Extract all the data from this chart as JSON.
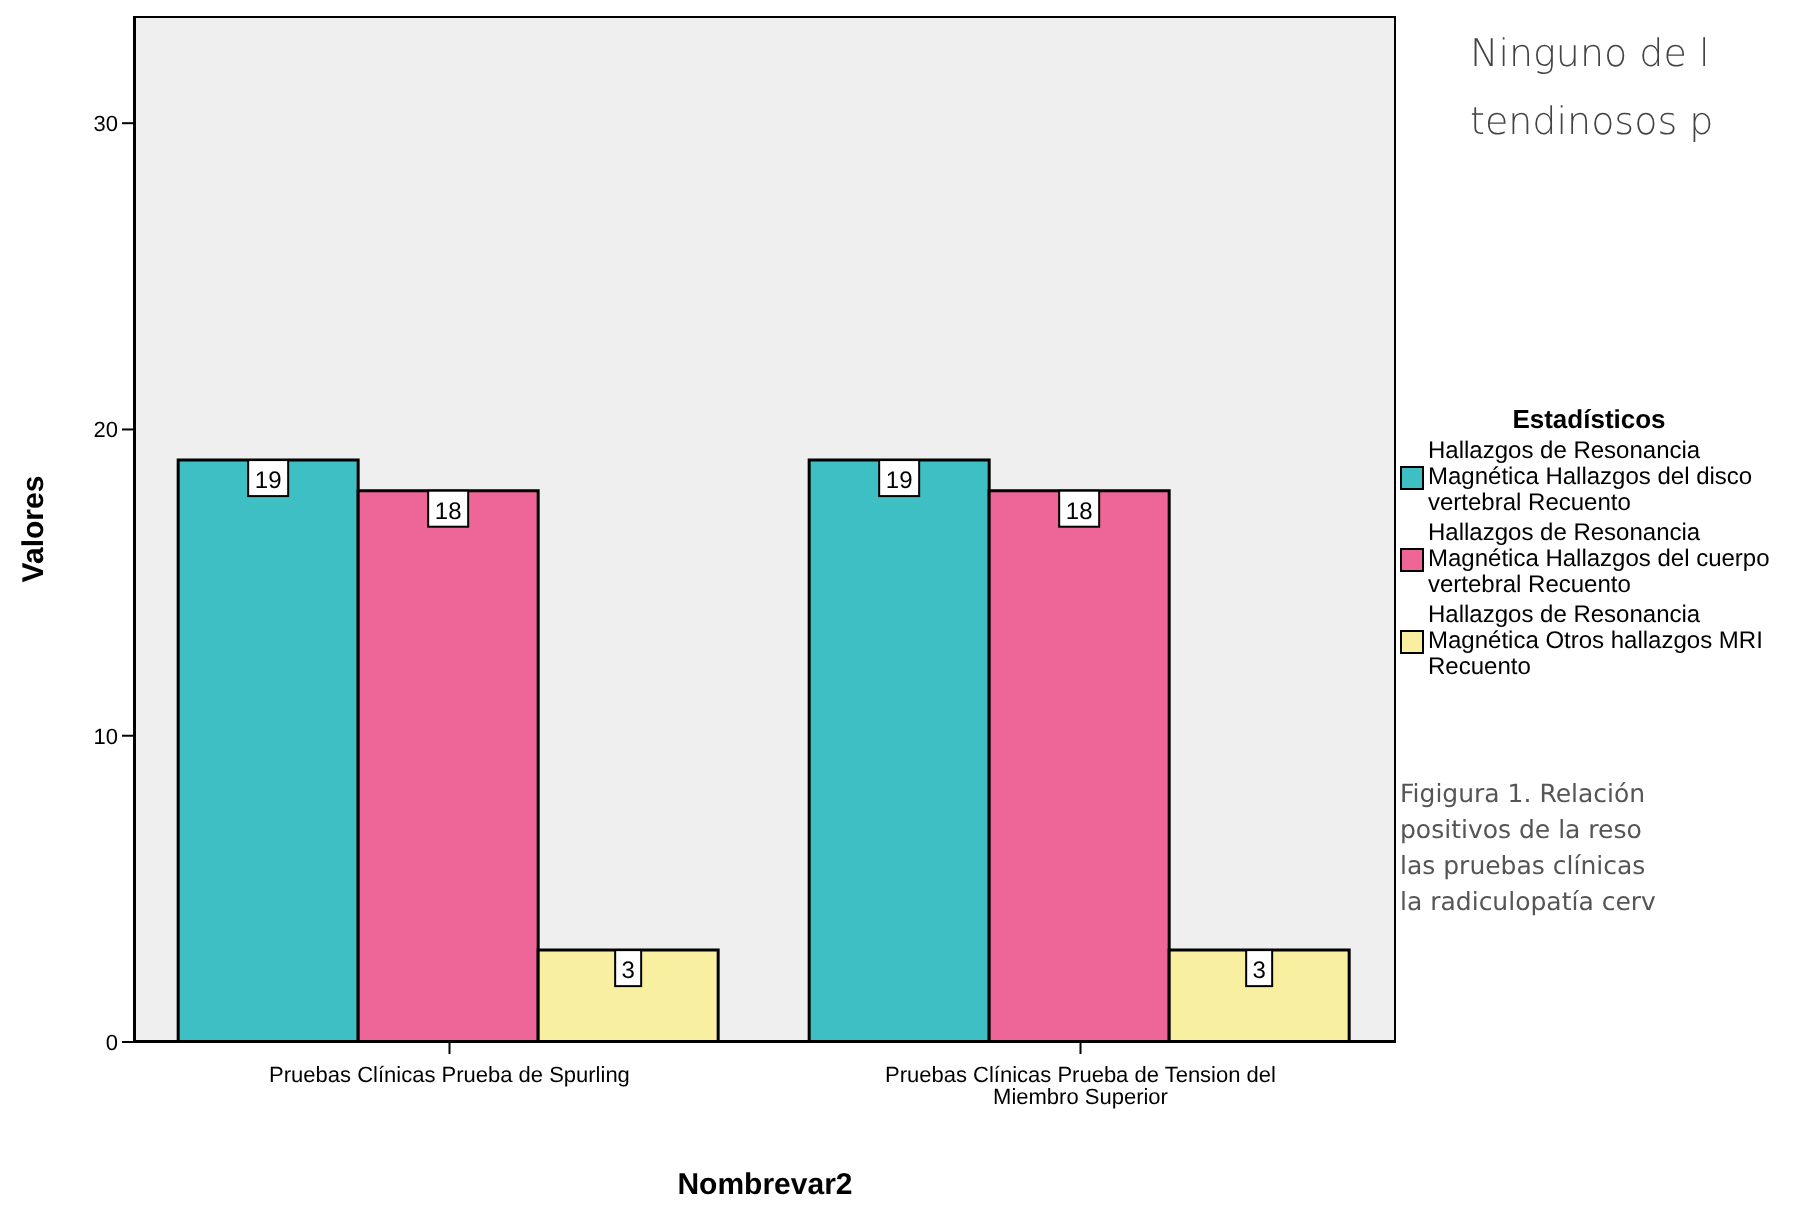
{
  "chart_data": {
    "type": "bar",
    "xlabel": "Nombrevar2",
    "ylabel": "Valores",
    "legend_title": "Estadísticos",
    "categories": [
      "Pruebas Clínicas Prueba de Spurling",
      "Pruebas Clínicas Prueba de Tension del Miembro Superior"
    ],
    "series": [
      {
        "name": "Hallazgos de Resonancia Magnética Hallazgos del disco vertebral Recuento",
        "color": "#3dbfc4",
        "values": [
          19,
          19
        ]
      },
      {
        "name": "Hallazgos de Resonancia Magnética Hallazgos del cuerpo vertebral Recuento",
        "color": "#ee6698",
        "values": [
          18,
          18
        ]
      },
      {
        "name": "Hallazgos de Resonancia Magnética Otros hallazgos MRI Recuento",
        "color": "#f8f0a0",
        "values": [
          3,
          3
        ]
      }
    ],
    "ylim": [
      0,
      33.5
    ],
    "yticks": [
      0,
      10,
      20,
      30
    ],
    "grid": false,
    "legend": "right",
    "data_labels": true,
    "annotations": [
      "Ninguno de l\ntendinosos p",
      "Figigura 1. Relación\npositivos de la reso\nlas pruebas clínicas\nla radiculopatía cerv"
    ]
  }
}
